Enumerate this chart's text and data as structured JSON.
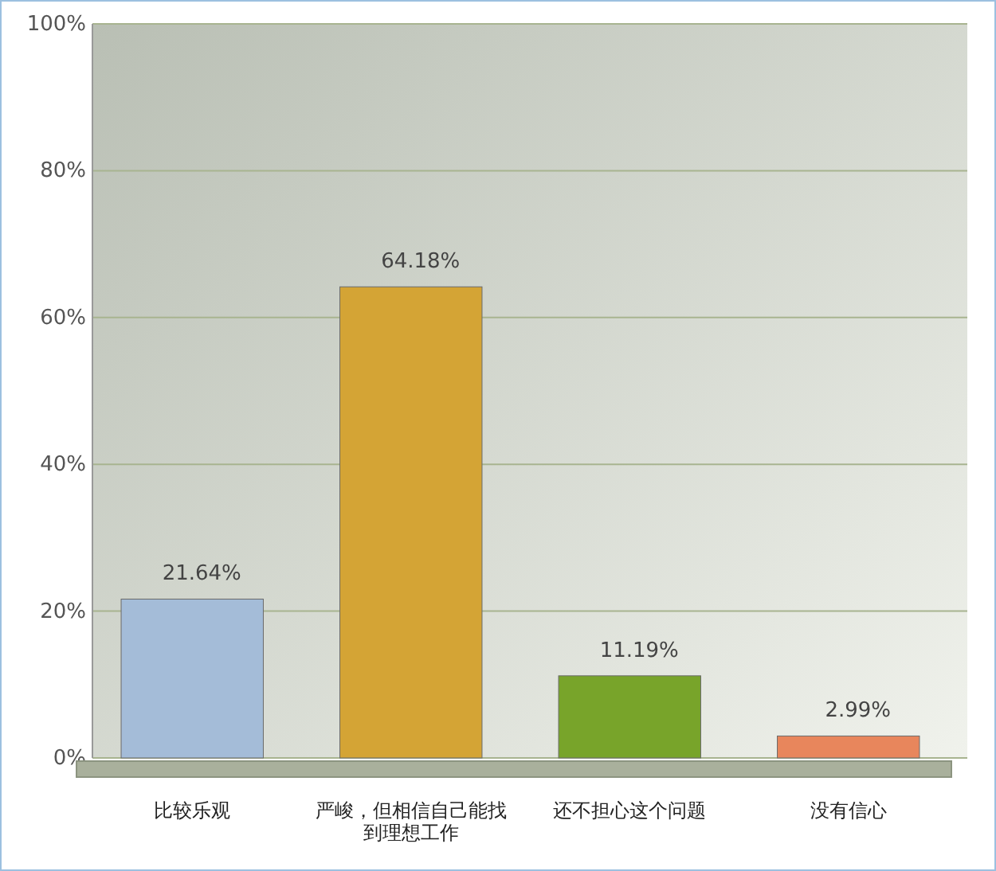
{
  "chart_data": {
    "type": "bar",
    "categories": [
      "比较乐观",
      "严峻，但相信自己能找到理想工作",
      "还不担心这个问题",
      "没有信心"
    ],
    "values": [
      21.64,
      64.18,
      11.19,
      2.99
    ],
    "colors": [
      "#a4bcd8",
      "#d4a435",
      "#78a42a",
      "#e8865c"
    ],
    "value_labels": [
      "21.64%",
      "64.18%",
      "11.19%",
      "2.99%"
    ],
    "ylim": [
      0,
      100
    ],
    "yticks": [
      {
        "value": 0,
        "label": "0%"
      },
      {
        "value": 20,
        "label": "20%"
      },
      {
        "value": 40,
        "label": "40%"
      },
      {
        "value": 60,
        "label": "60%"
      },
      {
        "value": 80,
        "label": "80%"
      },
      {
        "value": 100,
        "label": "100%"
      }
    ],
    "grid": "y"
  }
}
